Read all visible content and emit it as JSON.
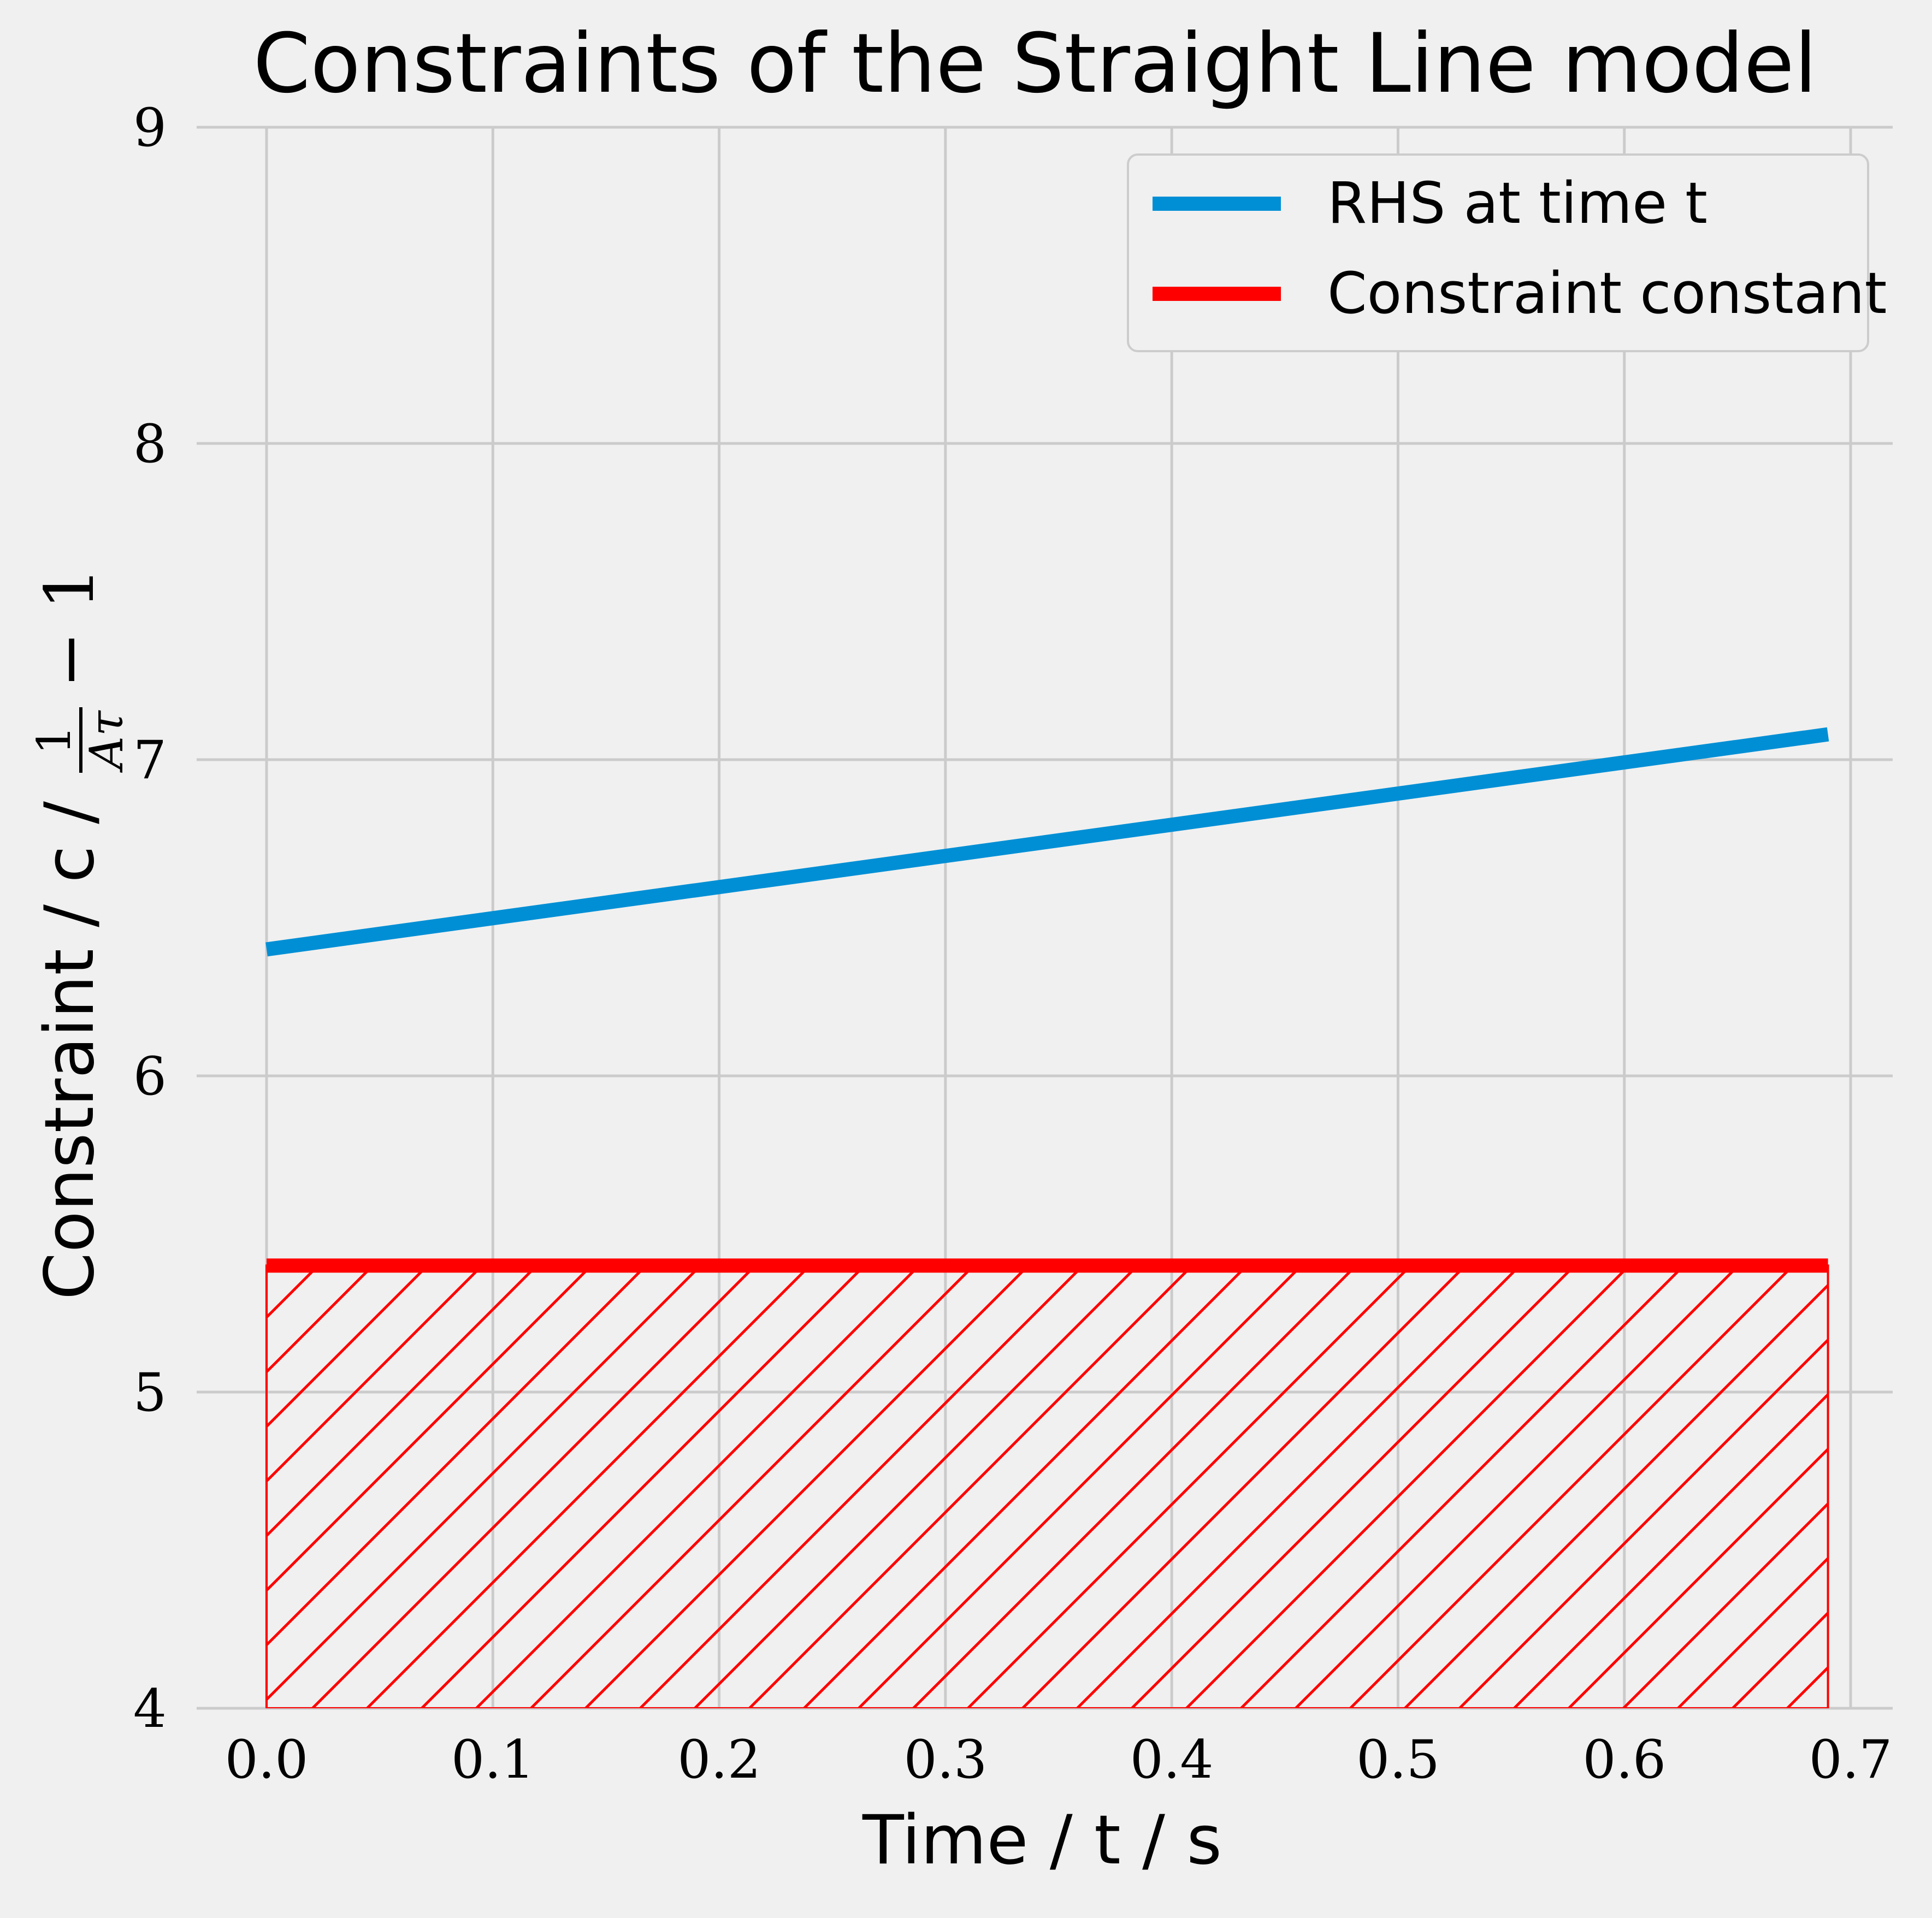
{
  "chart_data": {
    "type": "line",
    "title": "Constraints of the Straight Line model",
    "xlabel": "Time / t / s",
    "ylabel": "Constraint / c / 1/Aτ − 1",
    "ylabel_parts": {
      "text": "Constraint / c /",
      "frac_num": "1",
      "frac_den": "Aτ",
      "suffix": "− 1"
    },
    "xlim": [
      -0.03,
      0.72
    ],
    "ylim": [
      4,
      9
    ],
    "x_ticks": [
      0.0,
      0.1,
      0.2,
      0.3,
      0.4,
      0.5,
      0.6,
      0.7
    ],
    "x_tick_labels": [
      "0.0",
      "0.1",
      "0.2",
      "0.3",
      "0.4",
      "0.5",
      "0.6",
      "0.7"
    ],
    "y_ticks": [
      4,
      5,
      6,
      7,
      8,
      9
    ],
    "y_tick_labels": [
      "4",
      "5",
      "6",
      "7",
      "8",
      "9"
    ],
    "grid": true,
    "legend_position": "top-right",
    "series": [
      {
        "name": "RHS at time t",
        "color": "#008fd5",
        "x": [
          0.0,
          0.69
        ],
        "y": [
          6.4,
          7.08
        ]
      },
      {
        "name": "Constraint constant",
        "color": "#ff0000",
        "x": [
          0.0,
          0.69
        ],
        "y": [
          5.4,
          5.4
        ],
        "fill_below": true,
        "fill_hatch": "diagonal"
      }
    ]
  },
  "colors": {
    "background": "#f0f0f0",
    "grid": "#cbcbcb",
    "legend_border": "#cccccc",
    "legend_bg": "#f0f0f0"
  }
}
